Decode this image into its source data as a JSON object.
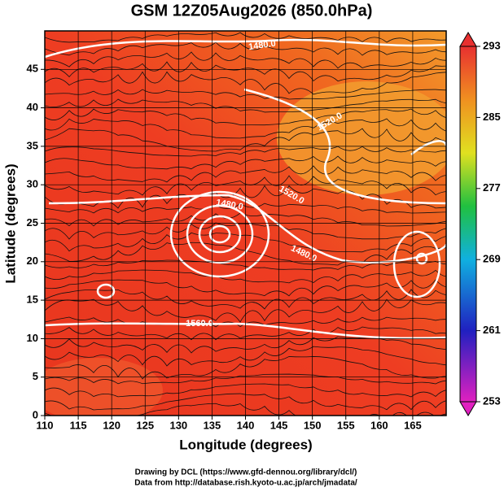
{
  "title": "GSM 12Z05Aug2026 (850.0hPa)",
  "x_axis": {
    "label": "Longitude (degrees)",
    "lim": [
      110,
      170
    ],
    "ticks": [
      110,
      115,
      120,
      125,
      130,
      135,
      140,
      145,
      150,
      155,
      160,
      165
    ]
  },
  "y_axis": {
    "label": "Latitude  (degrees)",
    "lim": [
      0,
      50
    ],
    "ticks": [
      0,
      5,
      10,
      15,
      20,
      25,
      30,
      35,
      40,
      45
    ]
  },
  "colorbar": {
    "lim": [
      253,
      293
    ],
    "ticks": [
      253,
      261,
      269,
      277,
      285,
      293
    ]
  },
  "contour_labels": [
    "1480.0",
    "1520.0",
    "1520.0",
    "1480.0",
    "1480.0",
    "1560.0"
  ],
  "footer": [
    "Drawing by DCL (https://www.gfd-dennou.org/library/dcl/)",
    "Data from http://database.rish.kyoto-u.ac.jp/arch/jmadata/"
  ]
}
